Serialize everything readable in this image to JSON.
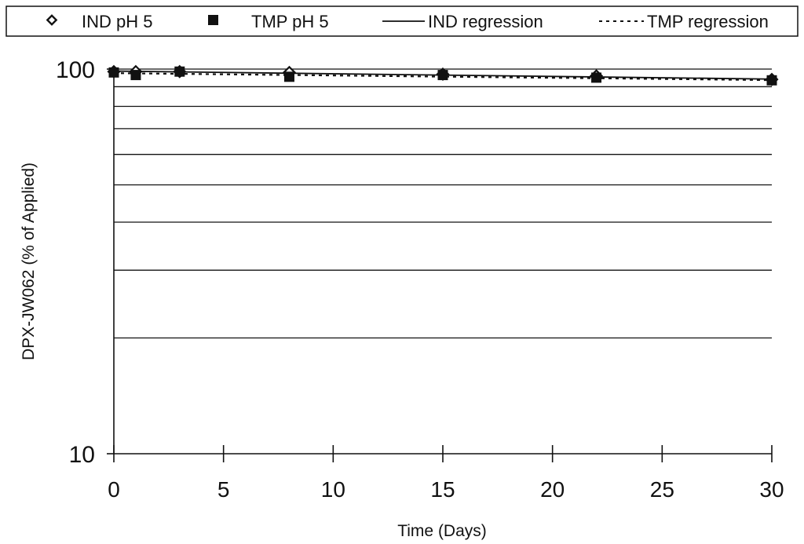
{
  "chart_data": {
    "type": "scatter",
    "xlabel": "Time (Days)",
    "ylabel": "DPX-JW062 (% of Applied)",
    "x_ticks": [
      "0",
      "5",
      "10",
      "15",
      "20",
      "25",
      "30"
    ],
    "xlim": [
      0,
      30
    ],
    "y_scale": "log",
    "ylim": [
      10,
      100
    ],
    "y_ticks": [
      "10",
      "100"
    ],
    "y_gridlines": [
      20,
      30,
      40,
      50,
      60,
      70,
      80,
      90,
      100
    ],
    "grid": "horizontal",
    "legend_position": "top",
    "series": [
      {
        "name": "IND pH 5",
        "kind": "markers",
        "marker": "open-diamond",
        "color": "#111111",
        "x": [
          0,
          1,
          3,
          8,
          15,
          22,
          30
        ],
        "y": [
          98.5,
          98.5,
          98.5,
          98,
          97,
          96,
          94
        ]
      },
      {
        "name": "TMP pH 5",
        "kind": "markers",
        "marker": "filled-square",
        "color": "#111111",
        "x": [
          0,
          1,
          3,
          8,
          15,
          22,
          30
        ],
        "y": [
          98,
          96.5,
          98.5,
          95.5,
          96.5,
          95,
          93.5
        ]
      },
      {
        "name": "IND regression",
        "kind": "line",
        "style": "solid",
        "color": "#111111",
        "x": [
          0,
          30
        ],
        "y": [
          98.8,
          94.2
        ]
      },
      {
        "name": "TMP regression",
        "kind": "line",
        "style": "dashed",
        "color": "#111111",
        "x": [
          0,
          30
        ],
        "y": [
          97.6,
          93.6
        ]
      }
    ]
  }
}
